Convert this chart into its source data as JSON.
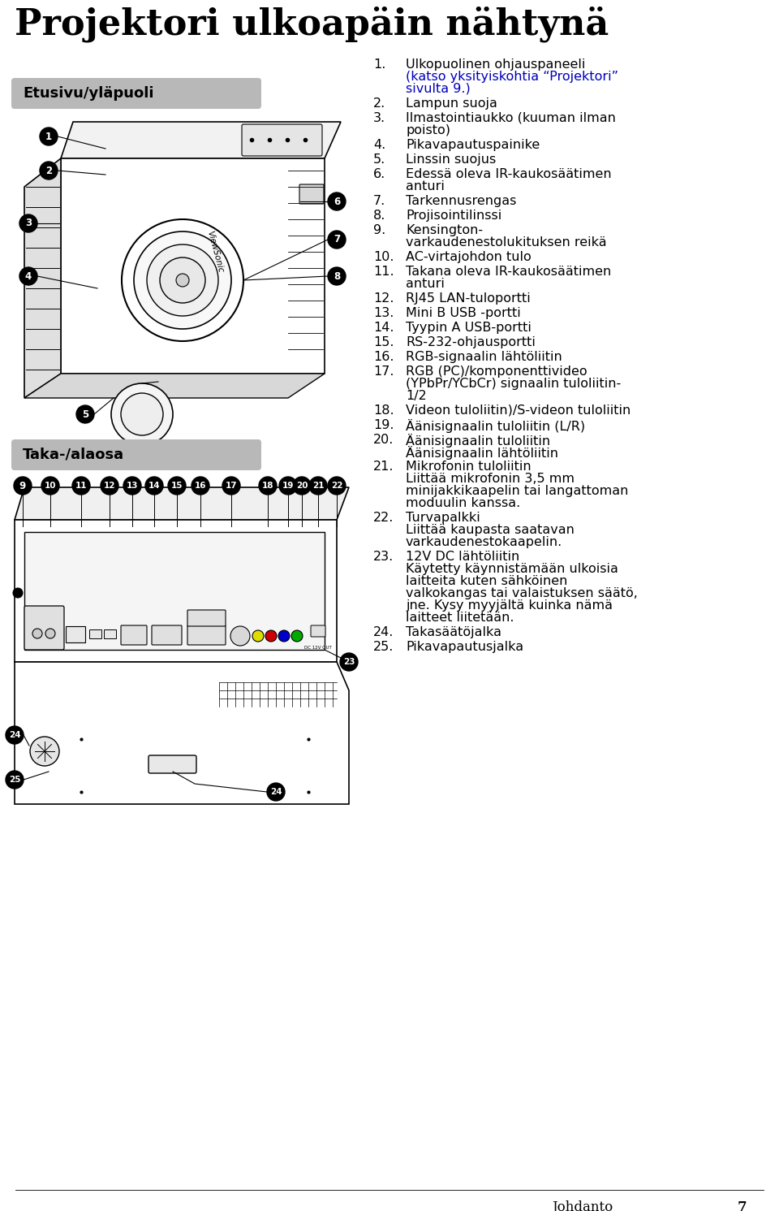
{
  "title": "Projektori ulkoapäin nähtynä",
  "title_fontsize": 32,
  "bg_color": "#ffffff",
  "label_front": "Etusivu/yläpuoli",
  "label_back": "Taka-/alaosa",
  "label_box_color": "#b8b8b8",
  "label_text_color": "#000000",
  "label_fontsize": 13,
  "label_bold": true,
  "numbered_items": [
    {
      "num": "1.",
      "text": "Ulkopuolinen ohjauspaneeli",
      "extra": "(katso yksityiskohtia “Projektori”\nsivulta 9.)",
      "extra_color": "#0000bb"
    },
    {
      "num": "2.",
      "text": "Lampun suoja",
      "extra": null,
      "extra_color": null
    },
    {
      "num": "3.",
      "text": "Ilmastointiaukko (kuuman ilman",
      "extra": "poisto)",
      "extra_color": "#000000"
    },
    {
      "num": "4.",
      "text": "Pikavapautuspainike",
      "extra": null,
      "extra_color": null
    },
    {
      "num": "5.",
      "text": "Linssin suojus",
      "extra": null,
      "extra_color": null
    },
    {
      "num": "6.",
      "text": "Edessä oleva IR-kaukosäätimen",
      "extra": "anturi",
      "extra_color": "#000000"
    },
    {
      "num": "7.",
      "text": "Tarkennusrengas",
      "extra": null,
      "extra_color": null
    },
    {
      "num": "8.",
      "text": "Projisointilinssi",
      "extra": null,
      "extra_color": null
    },
    {
      "num": "9.",
      "text": "Kensington-",
      "extra": "varkaudenestolukituksen reikä",
      "extra_color": "#000000"
    },
    {
      "num": "10.",
      "text": "AC-virtajohdon tulo",
      "extra": null,
      "extra_color": null
    },
    {
      "num": "11.",
      "text": "Takana oleva IR-kaukosäätimen",
      "extra": "anturi",
      "extra_color": "#000000"
    },
    {
      "num": "12.",
      "text": "RJ45 LAN-tuloportti",
      "extra": null,
      "extra_color": null
    },
    {
      "num": "13.",
      "text": "Mini B USB -portti",
      "extra": null,
      "extra_color": null
    },
    {
      "num": "14.",
      "text": "Tyypin A USB-portti",
      "extra": null,
      "extra_color": null
    },
    {
      "num": "15.",
      "text": "RS-232-ohjausportti",
      "extra": null,
      "extra_color": null
    },
    {
      "num": "16.",
      "text": "RGB-signaalin lähtöliitin",
      "extra": null,
      "extra_color": null
    },
    {
      "num": "17.",
      "text": "RGB (PC)/komponenttivideo",
      "extra": "(YPbPr/YCbCr) signaalin tuloliitin-\n1/2",
      "extra_color": "#000000"
    },
    {
      "num": "18.",
      "text": "Videon tuloliitin)/S-videon tuloliitin",
      "extra": null,
      "extra_color": null
    },
    {
      "num": "19.",
      "text": "Äänisignaalin tuloliitin (L/R)",
      "extra": null,
      "extra_color": null
    },
    {
      "num": "20.",
      "text": "Äänisignaalin tuloliitin",
      "extra": "Äänisignaalin lähtöliitin",
      "extra_color": "#000000"
    },
    {
      "num": "21.",
      "text": "Mikrofonin tuloliitin",
      "extra": "Liittää mikrofonin 3,5 mm\nminijakkikaapelin tai langattoman\nmoduulin kanssa.",
      "extra_color": "#000000"
    },
    {
      "num": "22.",
      "text": "Turvapalkki",
      "extra": "Liittää kaupasta saatavan\nvarkaudenestokaapelin.",
      "extra_color": "#000000"
    },
    {
      "num": "23.",
      "text": "12V DC lähtöliitin",
      "extra": "Käytetty käynnistämään ulkoisia\nlaitteita kuten sähköinen\nvalkokangas tai valaistuksen säätö,\njne. Kysy myyjältä kuinka nämä\nlaitteet liitetään.",
      "extra_color": "#000000"
    },
    {
      "num": "24.",
      "text": "Takasäätöjalka",
      "extra": null,
      "extra_color": null
    },
    {
      "num": "25.",
      "text": "Pikavapautusjalka",
      "extra": null,
      "extra_color": null
    }
  ],
  "text_fontsize": 11.5,
  "footer_text": "Johdanto",
  "footer_page": "7"
}
